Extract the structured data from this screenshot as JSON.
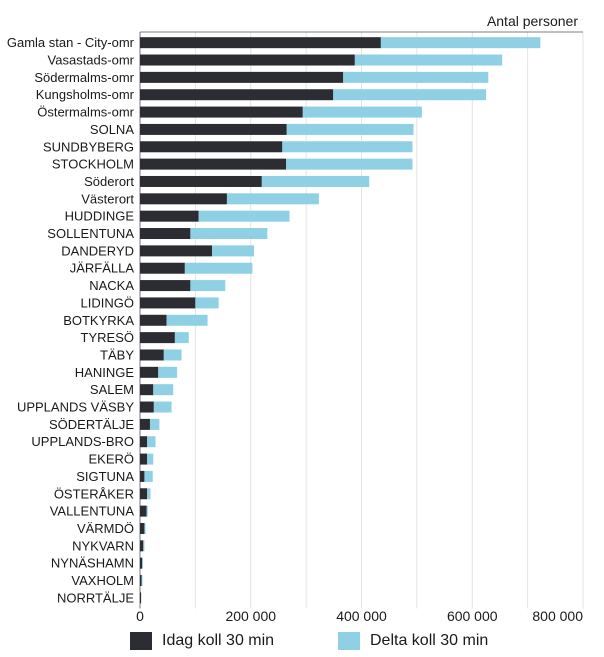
{
  "chart_data": {
    "type": "bar",
    "orientation": "horizontal",
    "stacked": true,
    "unit_label": "Antal personer",
    "categories": [
      "Gamla stan - City-omr",
      "Vasastads-omr",
      "Södermalms-omr",
      "Kungsholms-omr",
      "Östermalms-omr",
      "SOLNA",
      "SUNDBYBERG",
      "STOCKHOLM",
      "Söderort",
      "Västerort",
      "HUDDINGE",
      "SOLLENTUNA",
      "DANDERYD",
      "JÄRFÄLLA",
      "NACKA",
      "LIDINGÖ",
      "BOTKYRKA",
      "TYRESÖ",
      "TÄBY",
      "HANINGE",
      "SALEM",
      "UPPLANDS VÄSBY",
      "SÖDERTÄLJE",
      "UPPLANDS-BRO",
      "EKERÖ",
      "SIGTUNA",
      "ÖSTERÅKER",
      "VALLENTUNA",
      "VÄRMDÖ",
      "NYKVARN",
      "NYNÄSHAMN",
      "VAXHOLM",
      "NORRTÄLJE"
    ],
    "series": [
      {
        "name": "Idag koll 30 min",
        "color": "#2b2d33",
        "values": [
          435000,
          388000,
          367000,
          349000,
          294000,
          265000,
          257000,
          264000,
          220000,
          157000,
          106000,
          91000,
          130000,
          81000,
          91000,
          100000,
          48000,
          63000,
          43000,
          33000,
          24000,
          25000,
          18000,
          13000,
          13000,
          8000,
          13000,
          12000,
          8000,
          6000,
          4000,
          3000,
          2000
        ]
      },
      {
        "name": "Delta koll 30 min",
        "color": "#8fd0e4",
        "values": [
          288000,
          266000,
          262000,
          276000,
          215000,
          229000,
          235000,
          228000,
          194000,
          166000,
          164000,
          139000,
          76000,
          122000,
          63000,
          42000,
          74000,
          25000,
          32000,
          34000,
          36000,
          32000,
          17000,
          15000,
          11000,
          15000,
          6000,
          2000,
          2000,
          2000,
          1000,
          1000,
          0
        ]
      }
    ],
    "x_ticks": [
      "0",
      "200 000",
      "400 000",
      "600 000",
      "800 000"
    ],
    "xlim": [
      0,
      800000
    ],
    "grid": "vertical",
    "legend_position": "bottom"
  }
}
